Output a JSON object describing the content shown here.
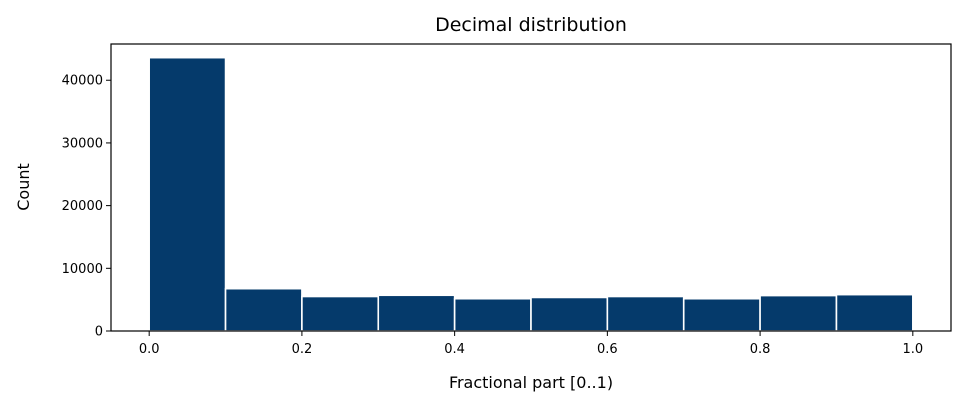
{
  "chart_data": {
    "type": "bar",
    "title": "Decimal distribution",
    "xlabel": "Fractional part [0..1)",
    "ylabel": "Count",
    "bins": [
      {
        "start": 0.0,
        "end": 0.1,
        "value": 43600
      },
      {
        "start": 0.1,
        "end": 0.2,
        "value": 6750
      },
      {
        "start": 0.2,
        "end": 0.3,
        "value": 5500
      },
      {
        "start": 0.3,
        "end": 0.4,
        "value": 5700
      },
      {
        "start": 0.4,
        "end": 0.5,
        "value": 5150
      },
      {
        "start": 0.5,
        "end": 0.6,
        "value": 5350
      },
      {
        "start": 0.6,
        "end": 0.7,
        "value": 5500
      },
      {
        "start": 0.7,
        "end": 0.8,
        "value": 5150
      },
      {
        "start": 0.8,
        "end": 0.9,
        "value": 5650
      },
      {
        "start": 0.9,
        "end": 1.0,
        "value": 5800
      }
    ],
    "xlim": [
      -0.05,
      1.05
    ],
    "ylim": [
      0,
      45780
    ],
    "xticks": [
      0.0,
      0.2,
      0.4,
      0.6,
      0.8,
      1.0
    ],
    "xtick_labels": [
      "0.0",
      "0.2",
      "0.4",
      "0.6",
      "0.8",
      "1.0"
    ],
    "yticks": [
      0,
      10000,
      20000,
      30000,
      40000
    ],
    "ytick_labels": [
      "0",
      "10000",
      "20000",
      "30000",
      "40000"
    ],
    "bar_color": "#053a6b",
    "grid": false,
    "legend": "none"
  }
}
